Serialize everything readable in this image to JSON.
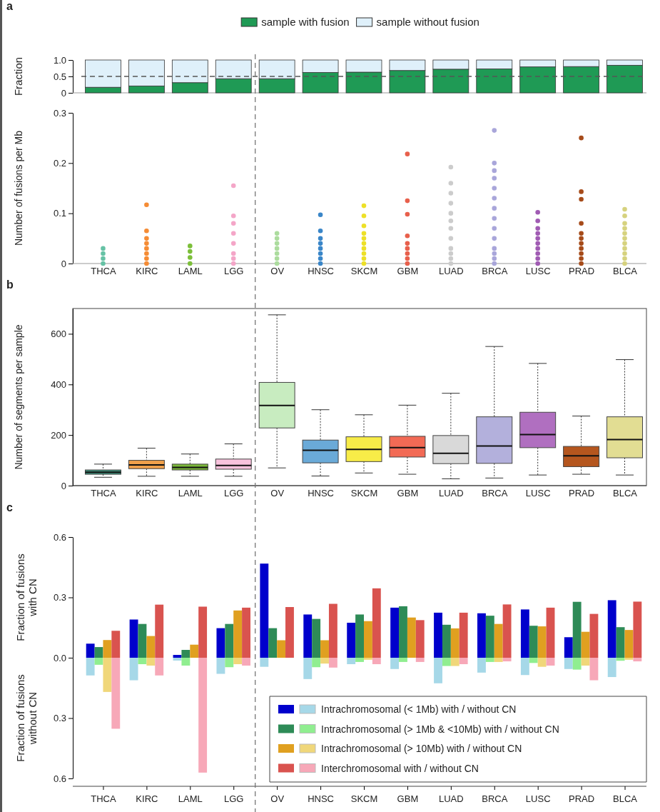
{
  "chart_data": [
    {
      "type": "bar",
      "stacked": true,
      "ylabel": "Fraction",
      "annotations": [
        "a"
      ],
      "legend": "top",
      "tick_labels": "y",
      "categories": [
        null,
        null,
        null,
        null,
        null,
        null,
        null,
        null,
        null,
        null,
        null,
        null,
        null
      ],
      "series": [
        {
          "name": "sample with fusion",
          "color": "#1f9a55",
          "values": [
            0.17,
            0.21,
            0.31,
            0.43,
            0.43,
            0.62,
            0.63,
            0.68,
            0.72,
            0.73,
            0.79,
            0.8,
            0.84
          ]
        },
        {
          "name": "sample without fusion",
          "color": "#dff0fa",
          "values": [
            0.83,
            0.79,
            0.69,
            0.57,
            0.57,
            0.38,
            0.37,
            0.32,
            0.28,
            0.27,
            0.21,
            0.2,
            0.16
          ]
        }
      ],
      "ylim": [
        0,
        1
      ],
      "yticks": [
        0,
        0.5,
        {
          "value": 1,
          "label": "1.0"
        }
      ],
      "ref_lines": [
        {
          "axis": "y",
          "value": 0.5,
          "line_style": "dashed",
          "color": "#555555"
        }
      ]
    },
    {
      "type": "scatter",
      "ylabel": "Number of fusions per Mb",
      "marker": "circle",
      "categories": [
        "THCA",
        "KIRC",
        "LAML",
        "LGG",
        "OV",
        "HNSC",
        "SKCM",
        "GBM",
        "LUAD",
        "BRCA",
        "LUSC",
        "PRAD",
        "BLCA"
      ],
      "series": [
        {
          "color": "#66c2a5",
          "x": [
            "THCA",
            "THCA",
            "THCA",
            "THCA"
          ],
          "values": [
            0,
            0.01,
            0.02,
            0.03
          ]
        },
        {
          "color": "#f58c35",
          "x": [
            "KIRC",
            "KIRC",
            "KIRC",
            "KIRC",
            "KIRC",
            "KIRC",
            "KIRC",
            "KIRC"
          ],
          "values": [
            0,
            0.01,
            0.02,
            0.03,
            0.04,
            0.05,
            0.065,
            0.117
          ]
        },
        {
          "color": "#7cbf3a",
          "x": [
            "LAML",
            "LAML",
            "LAML",
            "LAML"
          ],
          "values": [
            0,
            0.012,
            0.024,
            0.035
          ]
        },
        {
          "color": "#f4a6c8",
          "x": [
            "LGG",
            "LGG",
            "LGG",
            "LGG",
            "LGG",
            "LGG",
            "LGG",
            "LGG"
          ],
          "values": [
            0,
            0.01,
            0.02,
            0.04,
            0.06,
            0.08,
            0.095,
            0.155
          ]
        },
        {
          "color": "#acdc9e",
          "x": [
            "OV",
            "OV",
            "OV",
            "OV",
            "OV",
            "OV",
            "OV"
          ],
          "values": [
            0,
            0.01,
            0.02,
            0.03,
            0.04,
            0.05,
            0.06
          ]
        },
        {
          "color": "#3a86c8",
          "x": [
            "HNSC",
            "HNSC",
            "HNSC",
            "HNSC",
            "HNSC",
            "HNSC",
            "HNSC",
            "HNSC"
          ],
          "values": [
            0,
            0.01,
            0.02,
            0.03,
            0.04,
            0.05,
            0.065,
            0.097
          ]
        },
        {
          "color": "#ede028",
          "x": [
            "SKCM",
            "SKCM",
            "SKCM",
            "SKCM",
            "SKCM",
            "SKCM",
            "SKCM",
            "SKCM",
            "SKCM",
            "SKCM"
          ],
          "values": [
            0,
            0.01,
            0.02,
            0.03,
            0.04,
            0.05,
            0.06,
            0.075,
            0.095,
            0.115
          ]
        },
        {
          "color": "#e8604c",
          "x": [
            "GBM",
            "GBM",
            "GBM",
            "GBM",
            "GBM",
            "GBM",
            "GBM",
            "GBM",
            "GBM"
          ],
          "values": [
            0,
            0.01,
            0.02,
            0.03,
            0.04,
            0.055,
            0.098,
            0.125,
            0.218
          ]
        },
        {
          "color": "#cccccc",
          "x": [
            "LUAD",
            "LUAD",
            "LUAD",
            "LUAD",
            "LUAD",
            "LUAD",
            "LUAD",
            "LUAD",
            "LUAD",
            "LUAD",
            "LUAD",
            "LUAD"
          ],
          "values": [
            0,
            0.01,
            0.02,
            0.03,
            0.05,
            0.07,
            0.085,
            0.1,
            0.12,
            0.14,
            0.16,
            0.192
          ]
        },
        {
          "color": "#a9a6da",
          "x": [
            "BRCA",
            "BRCA",
            "BRCA",
            "BRCA",
            "BRCA",
            "BRCA",
            "BRCA",
            "BRCA",
            "BRCA",
            "BRCA",
            "BRCA",
            "BRCA",
            "BRCA",
            "BRCA"
          ],
          "values": [
            0,
            0.01,
            0.02,
            0.03,
            0.05,
            0.07,
            0.09,
            0.11,
            0.13,
            0.15,
            0.17,
            0.185,
            0.2,
            0.265
          ]
        },
        {
          "color": "#a05bb3",
          "x": [
            "LUSC",
            "LUSC",
            "LUSC",
            "LUSC",
            "LUSC",
            "LUSC",
            "LUSC",
            "LUSC",
            "LUSC",
            "LUSC"
          ],
          "values": [
            0,
            0.01,
            0.02,
            0.03,
            0.04,
            0.05,
            0.06,
            0.07,
            0.085,
            0.102
          ]
        },
        {
          "color": "#a64b1a",
          "x": [
            "PRAD",
            "PRAD",
            "PRAD",
            "PRAD",
            "PRAD",
            "PRAD",
            "PRAD",
            "PRAD",
            "PRAD",
            "PRAD",
            "PRAD"
          ],
          "values": [
            0,
            0.01,
            0.02,
            0.03,
            0.04,
            0.05,
            0.06,
            0.08,
            0.128,
            0.143,
            0.25
          ]
        },
        {
          "color": "#d6d27e",
          "x": [
            "BLCA",
            "BLCA",
            "BLCA",
            "BLCA",
            "BLCA",
            "BLCA",
            "BLCA",
            "BLCA",
            "BLCA",
            "BLCA",
            "BLCA"
          ],
          "values": [
            0,
            0.01,
            0.02,
            0.03,
            0.04,
            0.05,
            0.06,
            0.07,
            0.08,
            0.095,
            0.108
          ]
        }
      ],
      "ylim": [
        0,
        0.3
      ],
      "yticks": [
        0,
        0.1,
        0.2,
        0.3
      ]
    },
    {
      "type": "box",
      "ylabel": "Number of segments per sample",
      "annotations": [
        "b"
      ],
      "categories": [
        "THCA",
        "KIRC",
        "LAML",
        "LGG",
        "OV",
        "HNSC",
        "SKCM",
        "GBM",
        "LUAD",
        "BRCA",
        "LUSC",
        "PRAD",
        "BLCA"
      ],
      "colors": [
        "#3c8f7a",
        "#f0a04b",
        "#7cb93a",
        "#f9c3dd",
        "#c8ecc0",
        "#6aaad8",
        "#f8ec48",
        "#f26a55",
        "#d9d9d9",
        "#b3b0dc",
        "#b06fc0",
        "#b5561e",
        "#e2dd93"
      ],
      "boxes": [
        {
          "low": 33,
          "q1": 45,
          "median": 53,
          "q3": 62,
          "high": 85
        },
        {
          "low": 37,
          "q1": 67,
          "median": 82,
          "q3": 100,
          "high": 148
        },
        {
          "low": 37,
          "q1": 62,
          "median": 72,
          "q3": 85,
          "high": 125
        },
        {
          "low": 37,
          "q1": 65,
          "median": 80,
          "q3": 105,
          "high": 165
        },
        {
          "low": 70,
          "q1": 228,
          "median": 317,
          "q3": 408,
          "high": 675
        },
        {
          "low": 38,
          "q1": 90,
          "median": 140,
          "q3": 180,
          "high": 300
        },
        {
          "low": 50,
          "q1": 95,
          "median": 143,
          "q3": 193,
          "high": 280
        },
        {
          "low": 45,
          "q1": 113,
          "median": 150,
          "q3": 195,
          "high": 318
        },
        {
          "low": 27,
          "q1": 87,
          "median": 128,
          "q3": 198,
          "high": 365
        },
        {
          "low": 30,
          "q1": 88,
          "median": 157,
          "q3": 272,
          "high": 550
        },
        {
          "low": 42,
          "q1": 150,
          "median": 202,
          "q3": 290,
          "high": 483
        },
        {
          "low": 45,
          "q1": 75,
          "median": 118,
          "q3": 155,
          "high": 275
        },
        {
          "low": 42,
          "q1": 110,
          "median": 182,
          "q3": 272,
          "high": 498
        }
      ],
      "ylim": [
        0,
        700
      ],
      "yticks": [
        0,
        200,
        400,
        600
      ]
    },
    {
      "type": "bar",
      "ylabel": "Fraction of fusions with CN",
      "annotations": [
        "c"
      ],
      "tick_labels": "y",
      "categories": [
        null,
        null,
        null,
        null,
        null,
        null,
        null,
        null,
        null,
        null,
        null,
        null,
        null
      ],
      "series": [
        {
          "color": "#0000cc",
          "values": [
            0.07,
            0.19,
            0.014,
            0.147,
            0.468,
            0.215,
            0.174,
            0.249,
            0.224,
            0.221,
            0.24,
            0.102,
            0.286
          ]
        },
        {
          "color": "#2e8b57",
          "values": [
            0.053,
            0.168,
            0.039,
            0.168,
            0.147,
            0.193,
            0.215,
            0.256,
            0.164,
            0.209,
            0.159,
            0.278,
            0.152
          ]
        },
        {
          "color": "#e0a020",
          "values": [
            0.088,
            0.108,
            0.065,
            0.235,
            0.087,
            0.087,
            0.182,
            0.2,
            0.146,
            0.168,
            0.156,
            0.129,
            0.138
          ]
        },
        {
          "color": "#d9534f",
          "values": [
            0.134,
            0.264,
            0.254,
            0.249,
            0.252,
            0.268,
            0.345,
            0.187,
            0.224,
            0.265,
            0.249,
            0.218,
            0.279
          ]
        }
      ],
      "ylim": [
        0,
        0.6
      ],
      "yticks": [
        {
          "value": 0,
          "label": "0.0"
        },
        0.3,
        0.6
      ]
    },
    {
      "type": "bar",
      "ylabel": "Fraction of fusions without CN",
      "legend": "bottom right",
      "categories": [
        "THCA",
        "KIRC",
        "LAML",
        "LGG",
        "OV",
        "HNSC",
        "SKCM",
        "GBM",
        "LUAD",
        "BRCA",
        "LUSC",
        "PRAD",
        "BLCA"
      ],
      "series": [
        {
          "name": "Intrachromosomal (< 1Mb) with / without CN",
          "color": "#a6d8e8",
          "values": [
            0.088,
            0.112,
            0.014,
            0.08,
            0.045,
            0.106,
            0.032,
            0.056,
            0.127,
            0.074,
            0.086,
            0.056,
            0.096
          ]
        },
        {
          "name": "Intrachromosomal (> 1Mb & <10Mb) with / without CN",
          "color": "#90ee90",
          "values": [
            0.035,
            0.032,
            0.039,
            0.047,
            0,
            0.047,
            0.021,
            0.021,
            0.041,
            0.021,
            0.026,
            0.059,
            0.015
          ]
        },
        {
          "name": "Intrachromosomal (> 10Mb) with / without CN",
          "color": "#f0d77a",
          "values": [
            0.17,
            0.039,
            0,
            0.032,
            0,
            0.029,
            0.01,
            0,
            0.041,
            0.021,
            0.045,
            0.039,
            0.01
          ]
        },
        {
          "name": "Interchromosomal with / without CN",
          "color": "#f7a8b8",
          "values": [
            0.353,
            0.088,
            0.571,
            0.039,
            0,
            0.049,
            0.032,
            0.021,
            0.032,
            0.018,
            0.039,
            0.112,
            0.018
          ]
        }
      ],
      "ylim": [
        0.6,
        0
      ],
      "yticks": [
        0.3,
        0.6
      ]
    }
  ]
}
